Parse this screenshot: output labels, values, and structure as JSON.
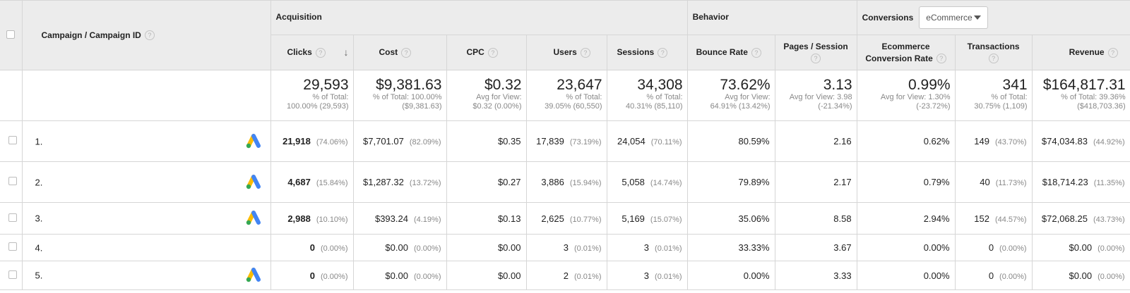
{
  "groups": {
    "acquisition": "Acquisition",
    "behavior": "Behavior",
    "conversions": "Conversions",
    "conversions_select": "eCommerce"
  },
  "columns": {
    "campaign": "Campaign / Campaign ID",
    "clicks": "Clicks",
    "cost": "Cost",
    "cpc": "CPC",
    "users": "Users",
    "sessions": "Sessions",
    "bounce_rate": "Bounce Rate",
    "pages_session": "Pages / Session",
    "ecom_rate_1": "Ecommerce",
    "ecom_rate_2": "Conversion Rate",
    "transactions": "Transactions",
    "revenue": "Revenue",
    "help": "?",
    "sort": "↓"
  },
  "totals": {
    "clicks": {
      "value": "29,593",
      "sub1": "% of Total:",
      "sub2": "100.00% (29,593)"
    },
    "cost": {
      "value": "$9,381.63",
      "sub1": "% of Total: 100.00%",
      "sub2": "($9,381.63)"
    },
    "cpc": {
      "value": "$0.32",
      "sub1": "Avg for View:",
      "sub2": "$0.32 (0.00%)"
    },
    "users": {
      "value": "23,647",
      "sub1": "% of Total:",
      "sub2": "39.05% (60,550)"
    },
    "sessions": {
      "value": "34,308",
      "sub1": "% of Total:",
      "sub2": "40.31% (85,110)"
    },
    "bounce_rate": {
      "value": "73.62%",
      "sub1": "Avg for View:",
      "sub2": "64.91% (13.42%)"
    },
    "pages_session": {
      "value": "3.13",
      "sub1": "Avg for View: 3.98",
      "sub2": "(-21.34%)"
    },
    "ecom_rate": {
      "value": "0.99%",
      "sub1": "Avg for View: 1.30%",
      "sub2": "(-23.72%)"
    },
    "transactions": {
      "value": "341",
      "sub1": "% of Total:",
      "sub2": "30.75% (1,109)"
    },
    "revenue": {
      "value": "$164,817.31",
      "sub1": "% of Total: 39.36%",
      "sub2": "($418,703.36)"
    }
  },
  "rows": [
    {
      "num": "1.",
      "clicks": "21,918",
      "clicks_pct": "(74.06%)",
      "cost": "$7,701.07",
      "cost_pct": "(82.09%)",
      "cpc": "$0.35",
      "users": "17,839",
      "users_pct": "(73.19%)",
      "sessions": "24,054",
      "sessions_pct": "(70.11%)",
      "bounce": "80.59%",
      "pages": "2.16",
      "ecom": "0.62%",
      "trans": "149",
      "trans_pct": "(43.70%)",
      "revenue": "$74,034.83",
      "revenue_pct": "(44.92%)"
    },
    {
      "num": "2.",
      "clicks": "4,687",
      "clicks_pct": "(15.84%)",
      "cost": "$1,287.32",
      "cost_pct": "(13.72%)",
      "cpc": "$0.27",
      "users": "3,886",
      "users_pct": "(15.94%)",
      "sessions": "5,058",
      "sessions_pct": "(14.74%)",
      "bounce": "79.89%",
      "pages": "2.17",
      "ecom": "0.79%",
      "trans": "40",
      "trans_pct": "(11.73%)",
      "revenue": "$18,714.23",
      "revenue_pct": "(11.35%)"
    },
    {
      "num": "3.",
      "clicks": "2,988",
      "clicks_pct": "(10.10%)",
      "cost": "$393.24",
      "cost_pct": "(4.19%)",
      "cpc": "$0.13",
      "users": "2,625",
      "users_pct": "(10.77%)",
      "sessions": "5,169",
      "sessions_pct": "(15.07%)",
      "bounce": "35.06%",
      "pages": "8.58",
      "ecom": "2.94%",
      "trans": "152",
      "trans_pct": "(44.57%)",
      "revenue": "$72,068.25",
      "revenue_pct": "(43.73%)"
    },
    {
      "num": "4.",
      "clicks": "0",
      "clicks_pct": "(0.00%)",
      "cost": "$0.00",
      "cost_pct": "(0.00%)",
      "cpc": "$0.00",
      "users": "3",
      "users_pct": "(0.01%)",
      "sessions": "3",
      "sessions_pct": "(0.01%)",
      "bounce": "33.33%",
      "pages": "3.67",
      "ecom": "0.00%",
      "trans": "0",
      "trans_pct": "(0.00%)",
      "revenue": "$0.00",
      "revenue_pct": "(0.00%)"
    },
    {
      "num": "5.",
      "clicks": "0",
      "clicks_pct": "(0.00%)",
      "cost": "$0.00",
      "cost_pct": "(0.00%)",
      "cpc": "$0.00",
      "users": "2",
      "users_pct": "(0.01%)",
      "sessions": "3",
      "sessions_pct": "(0.01%)",
      "bounce": "0.00%",
      "pages": "3.33",
      "ecom": "0.00%",
      "trans": "0",
      "trans_pct": "(0.00%)",
      "revenue": "$0.00",
      "revenue_pct": "(0.00%)"
    }
  ],
  "row_icons": [
    "google-ads",
    "google-ads",
    "google-ads",
    "none",
    "google-ads"
  ],
  "colors": {
    "header_bg": "#ececec",
    "border": "#d6d6d6",
    "muted": "#888888",
    "ads_blue": "#4285F4",
    "ads_yellow": "#FBBC04",
    "ads_green": "#34A853"
  }
}
